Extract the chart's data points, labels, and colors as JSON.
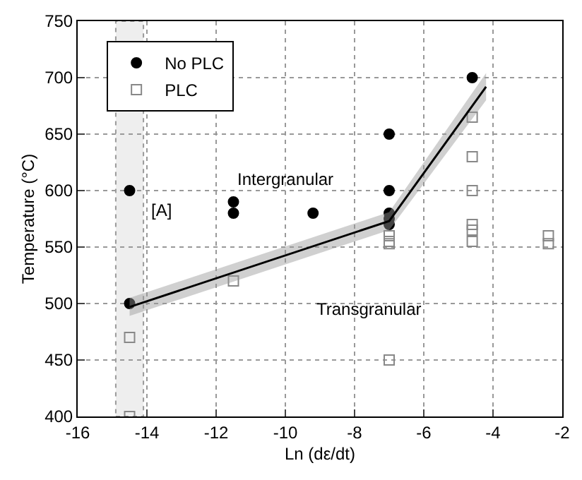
{
  "chart_data": {
    "type": "scatter",
    "xlabel": "Ln (dε/dt)",
    "ylabel": "Temperature (°C)",
    "xlim": [
      -16,
      -2
    ],
    "xticks": [
      -16,
      -14,
      -12,
      -10,
      -8,
      -6,
      -4,
      -2
    ],
    "ylim": [
      400,
      750
    ],
    "yticks": [
      400,
      450,
      500,
      550,
      600,
      650,
      700,
      750
    ],
    "grid": true,
    "legend": "top left",
    "series": [
      {
        "name": "No PLC",
        "marker": "circle",
        "color": "#000000",
        "x": [
          -14.5,
          -14.5,
          -11.5,
          -11.5,
          -9.2,
          -7,
          -7,
          -7,
          -7,
          -7,
          -4.6
        ],
        "values": [
          600,
          500,
          590,
          580,
          580,
          650,
          600,
          580,
          575,
          570,
          700
        ]
      },
      {
        "name": "PLC",
        "marker": "square",
        "color": "#888888",
        "x": [
          -14.5,
          -14.5,
          -11.5,
          -7,
          -7,
          -7,
          -7,
          -4.6,
          -4.6,
          -4.6,
          -4.6,
          -4.6,
          -4.6,
          -2.4,
          -2.4
        ],
        "values": [
          470,
          400,
          520,
          560,
          555,
          553,
          450,
          665,
          630,
          600,
          570,
          565,
          555,
          560,
          553
        ]
      },
      {
        "type": "line",
        "marker": "none",
        "line_style": "solid",
        "color": "#000000",
        "x": [
          -14.5,
          -7,
          -4.2
        ],
        "values": [
          497,
          573,
          692
        ],
        "lower": [
          489,
          565,
          680
        ],
        "upper": [
          505,
          581,
          704
        ]
      }
    ],
    "bands": [
      {
        "axis": "x",
        "from": -14.9,
        "to": -14.1,
        "color": "#eeeeee"
      }
    ],
    "annotations": [
      "Intergranular",
      "Transgranular",
      "[A]"
    ]
  }
}
